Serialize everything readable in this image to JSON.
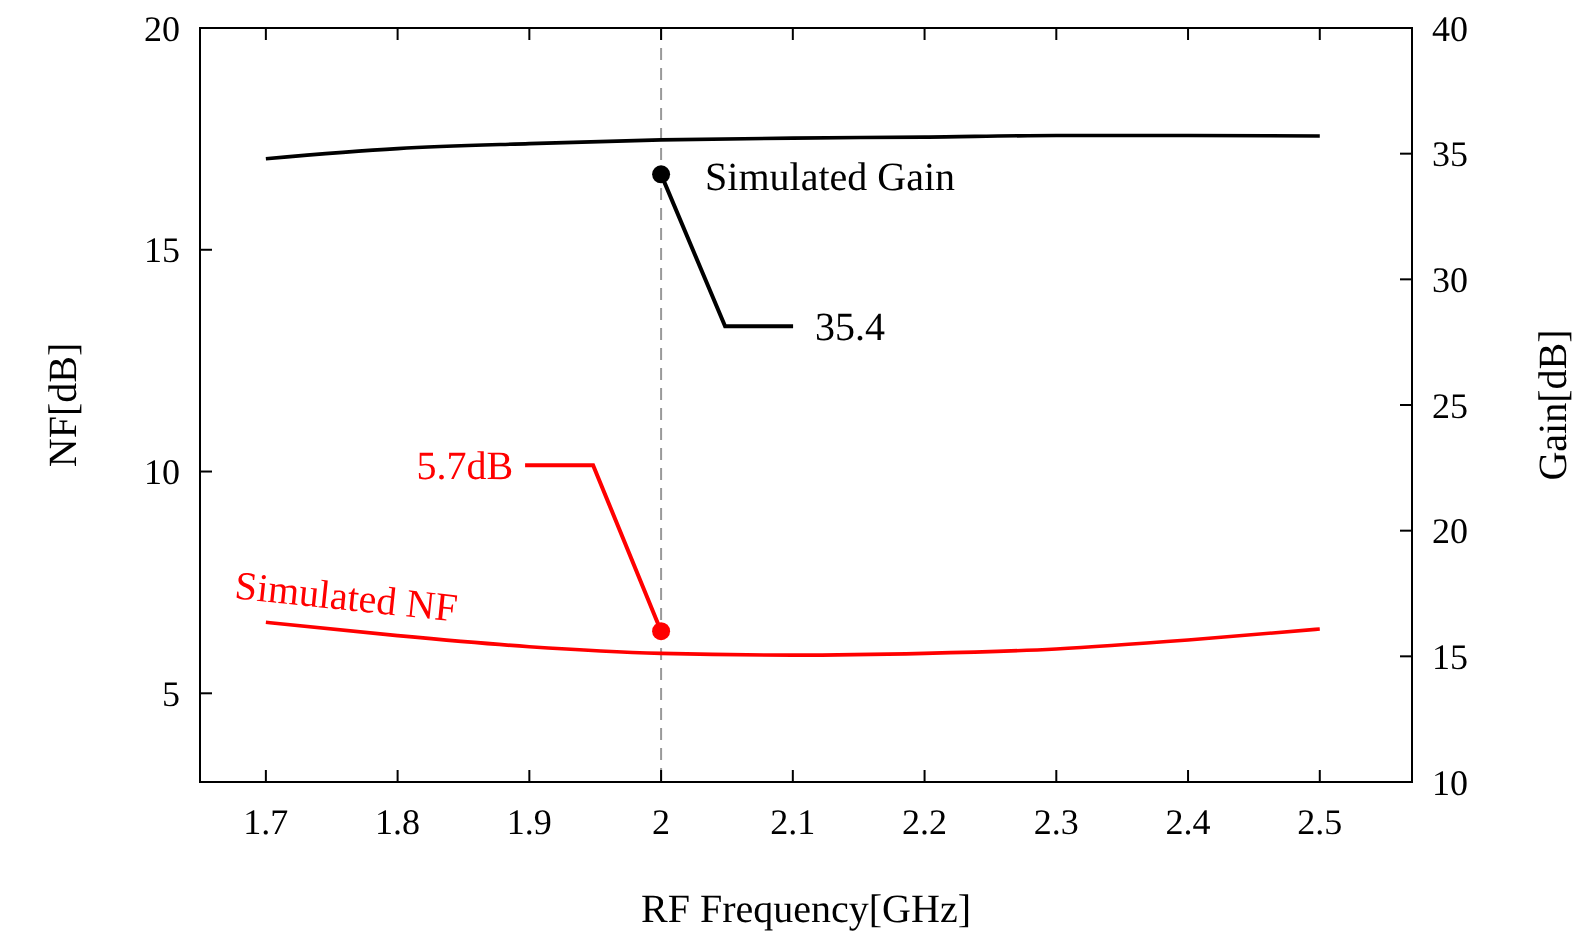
{
  "chart_data": {
    "type": "line",
    "xlabel": "RF Frequency[GHz]",
    "ylabel": "NF[dB]",
    "y2label": "Gain[dB]",
    "xlim": [
      1.65,
      2.57
    ],
    "xticks": [
      1.7,
      1.8,
      1.9,
      2,
      2.1,
      2.2,
      2.3,
      2.4,
      2.5
    ],
    "ylim": [
      3,
      20
    ],
    "yticks": [
      5,
      10,
      15,
      20
    ],
    "y2lim": [
      10,
      40
    ],
    "y2ticks": [
      10,
      15,
      20,
      25,
      30,
      35,
      40
    ],
    "x": [
      1.7,
      1.8,
      1.9,
      2.0,
      2.1,
      2.2,
      2.3,
      2.4,
      2.5
    ],
    "series": [
      {
        "name": "Simulated Gain",
        "color": "#000000",
        "axis": "y2",
        "values": [
          34.8,
          35.2,
          35.4,
          35.55,
          35.62,
          35.66,
          35.72,
          35.72,
          35.7
        ]
      },
      {
        "name": "Simulated NF",
        "color": "#ff0000",
        "axis": "y",
        "values": [
          6.6,
          6.3,
          6.05,
          5.9,
          5.86,
          5.9,
          6.0,
          6.2,
          6.45
        ]
      }
    ],
    "annotations": [
      {
        "text": "35.4",
        "x": 2,
        "y": 16.7
      },
      {
        "text": "5.7dB",
        "x": 2,
        "y": 6.4
      }
    ],
    "ref_lines": [
      {
        "axis": "x",
        "value": 2,
        "color": "#999999",
        "line_style": "dashed"
      }
    ],
    "grid": false,
    "marker": "none",
    "line_style": "solid"
  }
}
